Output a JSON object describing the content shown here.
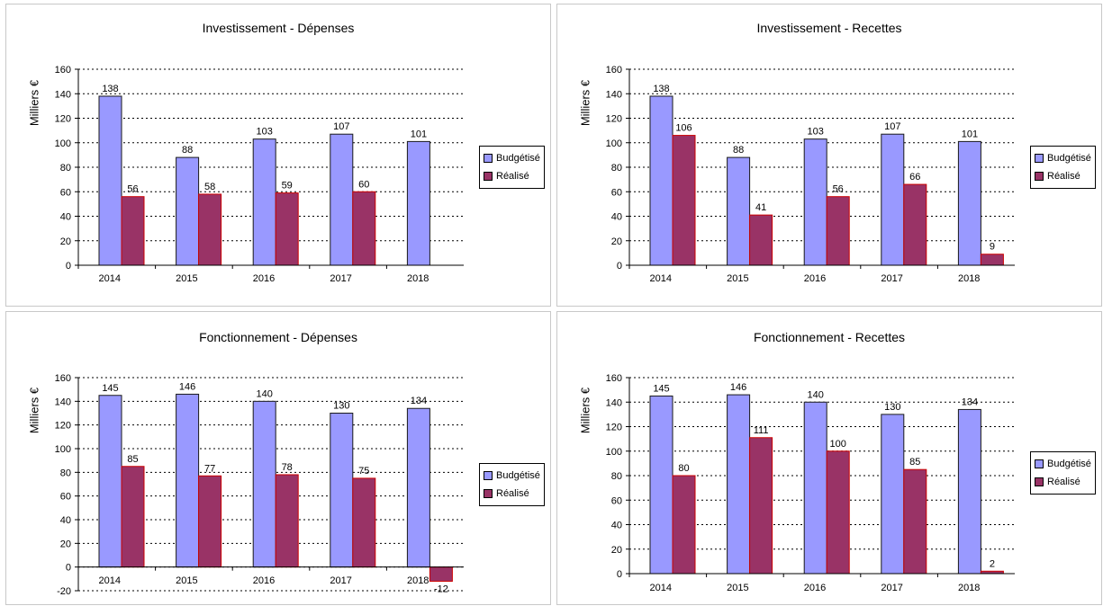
{
  "colors": {
    "budget": "#9999ff",
    "realise": "#993366",
    "realise_border": "#cc0000",
    "budget_border": "#1a1a1a",
    "grid": "#000000"
  },
  "chart_data": [
    {
      "type": "bar",
      "title": "Investissement - Dépenses",
      "ylabel": "Milliers €",
      "xlabel": "",
      "categories": [
        "2014",
        "2015",
        "2016",
        "2017",
        "2018"
      ],
      "series": [
        {
          "name": "Budgétisé",
          "values": [
            138,
            88,
            103,
            107,
            101
          ],
          "labels": [
            "138",
            "88",
            "103",
            "107",
            "101"
          ]
        },
        {
          "name": "Réalisé",
          "values": [
            56,
            58,
            59,
            60,
            null
          ],
          "labels": [
            "56",
            "58",
            "59",
            "60",
            ""
          ]
        }
      ],
      "ylim": [
        0,
        160
      ],
      "yticks": [
        0,
        20,
        40,
        60,
        80,
        100,
        120,
        140,
        160
      ],
      "grid": true,
      "legend": "right"
    },
    {
      "type": "bar",
      "title": "Investissement - Recettes",
      "ylabel": "Milliers €",
      "xlabel": "",
      "categories": [
        "2014",
        "2015",
        "2016",
        "2017",
        "2018"
      ],
      "series": [
        {
          "name": "Budgétisé",
          "values": [
            138,
            88,
            103,
            107,
            101
          ],
          "labels": [
            "138",
            "88",
            "103",
            "107",
            "101"
          ]
        },
        {
          "name": "Réalisé",
          "values": [
            106,
            41,
            56,
            66,
            9
          ],
          "labels": [
            "106",
            "41",
            "56",
            "66",
            "9"
          ]
        }
      ],
      "ylim": [
        0,
        160
      ],
      "yticks": [
        0,
        20,
        40,
        60,
        80,
        100,
        120,
        140,
        160
      ],
      "grid": true,
      "legend": "right"
    },
    {
      "type": "bar",
      "title": "Fonctionnement - Dépenses",
      "ylabel": "Milliers €",
      "xlabel": "",
      "categories": [
        "2014",
        "2015",
        "2016",
        "2017",
        "2018"
      ],
      "series": [
        {
          "name": "Budgétisé",
          "values": [
            145,
            146,
            140,
            130,
            134
          ],
          "labels": [
            "145",
            "146",
            "140",
            "130",
            "134"
          ]
        },
        {
          "name": "Réalisé",
          "values": [
            85,
            77,
            78,
            75,
            -12
          ],
          "labels": [
            "85",
            "77",
            "78",
            "75",
            "-12"
          ]
        }
      ],
      "ylim": [
        -20,
        160
      ],
      "yticks": [
        -20,
        0,
        20,
        40,
        60,
        80,
        100,
        120,
        140,
        160
      ],
      "grid": true,
      "legend": "right"
    },
    {
      "type": "bar",
      "title": "Fonctionnement - Recettes",
      "ylabel": "Milliers €",
      "xlabel": "",
      "categories": [
        "2014",
        "2015",
        "2016",
        "2017",
        "2018"
      ],
      "series": [
        {
          "name": "Budgétisé",
          "values": [
            145,
            146,
            140,
            130,
            134
          ],
          "labels": [
            "145",
            "146",
            "140",
            "130",
            "134"
          ]
        },
        {
          "name": "Réalisé",
          "values": [
            80,
            111,
            100,
            85,
            2
          ],
          "labels": [
            "80",
            "111",
            "100",
            "85",
            "2"
          ]
        }
      ],
      "ylim": [
        0,
        160
      ],
      "yticks": [
        0,
        20,
        40,
        60,
        80,
        100,
        120,
        140,
        160
      ],
      "grid": true,
      "legend": "right"
    }
  ]
}
